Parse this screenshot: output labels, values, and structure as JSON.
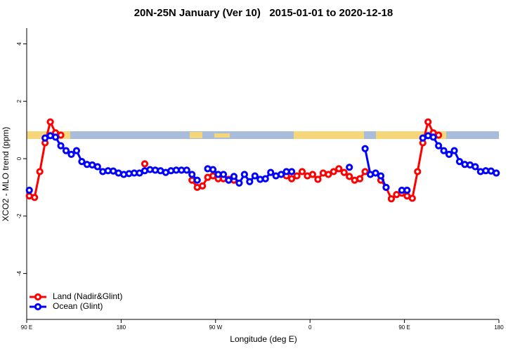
{
  "chart_data": {
    "type": "line",
    "title": "20N-25N January (Ver 10)   2015-01-01 to 2020-12-18",
    "xlabel": "Longitude (deg E)",
    "ylabel": "XCO2 - MLO trend (ppm)",
    "x": [
      92.5,
      97.5,
      102.5,
      107.5,
      112.5,
      117.5,
      122.5,
      127.5,
      132.5,
      137.5,
      142.5,
      147.5,
      152.5,
      157.5,
      162.5,
      167.5,
      172.5,
      177.5,
      182.5,
      187.5,
      192.5,
      197.5,
      202.5,
      207.5,
      212.5,
      217.5,
      222.5,
      227.5,
      232.5,
      237.5,
      242.5,
      247.5,
      252.5,
      257.5,
      262.5,
      267.5,
      272.5,
      277.5,
      282.5,
      287.5,
      292.5,
      297.5,
      302.5,
      307.5,
      312.5,
      317.5,
      322.5,
      327.5,
      332.5,
      337.5,
      342.5,
      347.5,
      352.5,
      357.5,
      362.5,
      367.5,
      372.5,
      377.5,
      382.5,
      387.5,
      392.5,
      397.5,
      402.5,
      407.5,
      412.5,
      417.5,
      422.5,
      427.5,
      432.5,
      437.5,
      442.5,
      447.5,
      452.5,
      457.5,
      462.5,
      467.5,
      472.5,
      477.5,
      482.5,
      487.5,
      492.5,
      497.5,
      502.5,
      507.5,
      512.5,
      517.5,
      522.5,
      527.5,
      532.5,
      537.5
    ],
    "series": [
      {
        "name": "Land (Nadir&Glint)",
        "color": "#ff0000",
        "values": [
          -1.3,
          -1.35,
          -0.45,
          0.55,
          1.28,
          0.9,
          0.82,
          null,
          null,
          null,
          null,
          null,
          null,
          null,
          null,
          null,
          null,
          null,
          null,
          null,
          null,
          null,
          -0.18,
          null,
          null,
          null,
          null,
          null,
          null,
          null,
          null,
          -0.75,
          -1.0,
          -0.95,
          -0.65,
          -0.6,
          -0.7,
          -0.7,
          -0.72,
          -0.75,
          null,
          null,
          null,
          null,
          null,
          null,
          null,
          null,
          null,
          -0.6,
          -0.7,
          -0.6,
          -0.45,
          -0.6,
          -0.55,
          -0.72,
          -0.5,
          -0.55,
          -0.45,
          -0.35,
          -0.48,
          -0.62,
          -0.75,
          -0.7,
          -0.45,
          null,
          null,
          -0.75,
          -1.0,
          -1.4,
          -1.25,
          -1.2,
          -1.3,
          -1.38,
          -0.45,
          0.55,
          1.28,
          0.9,
          0.82,
          null,
          null,
          null,
          null,
          null,
          null,
          null,
          null,
          null,
          null,
          null
        ]
      },
      {
        "name": "Ocean (Glint)",
        "color": "#0000ff",
        "values": [
          -1.1,
          null,
          null,
          0.72,
          0.8,
          0.75,
          0.45,
          0.28,
          0.15,
          0.28,
          -0.1,
          -0.2,
          -0.22,
          -0.28,
          -0.45,
          -0.42,
          -0.43,
          -0.5,
          -0.55,
          -0.52,
          -0.5,
          -0.5,
          -0.42,
          -0.38,
          -0.4,
          -0.42,
          -0.48,
          -0.42,
          -0.4,
          -0.4,
          -0.4,
          -0.55,
          -0.75,
          null,
          -0.35,
          -0.38,
          -0.55,
          -0.55,
          -0.75,
          -0.62,
          -0.85,
          -0.55,
          -0.8,
          -0.6,
          -0.72,
          -0.7,
          -0.48,
          -0.6,
          -0.55,
          -0.45,
          -0.45,
          null,
          null,
          null,
          null,
          null,
          null,
          null,
          null,
          null,
          null,
          -0.3,
          null,
          null,
          0.35,
          -0.55,
          -0.5,
          -0.6,
          -1.0,
          null,
          null,
          -1.1,
          -1.1,
          null,
          null,
          0.72,
          0.8,
          0.75,
          0.45,
          0.28,
          0.15,
          0.28,
          -0.1,
          -0.2,
          -0.22,
          -0.28,
          -0.45,
          -0.42,
          -0.43,
          -0.5
        ]
      }
    ],
    "xlim": [
      90,
      540
    ],
    "xticks": [
      {
        "value": 90,
        "label": "90 E"
      },
      180,
      {
        "value": 270,
        "label": "90 W"
      },
      {
        "value": 360,
        "label": "0"
      },
      {
        "value": 450,
        "label": "90 E"
      },
      {
        "value": 540,
        "label": "180"
      }
    ],
    "ylim": [
      -5.6,
      4.55
    ],
    "yticks": [
      -4,
      -2,
      0,
      2,
      4
    ],
    "legend": "bottom-left"
  }
}
